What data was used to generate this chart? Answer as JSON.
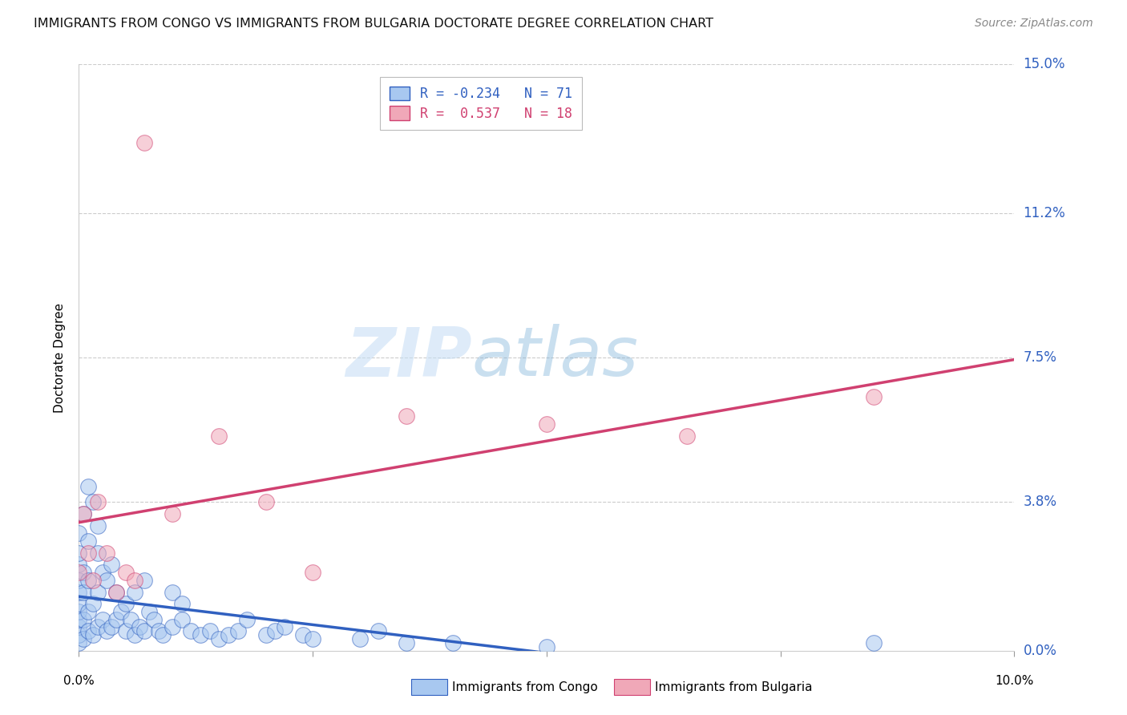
{
  "title": "IMMIGRANTS FROM CONGO VS IMMIGRANTS FROM BULGARIA DOCTORATE DEGREE CORRELATION CHART",
  "source": "Source: ZipAtlas.com",
  "ylabel": "Doctorate Degree",
  "xlim": [
    0.0,
    10.0
  ],
  "ylim": [
    0.0,
    15.0
  ],
  "legend_congo": "R = -0.234   N = 71",
  "legend_bulgaria": "R =  0.537   N = 18",
  "color_congo": "#A8C8F0",
  "color_bulgaria": "#F0A8B8",
  "line_color_congo": "#3060C0",
  "line_color_bulgaria": "#D04070",
  "ytick_labels": [
    "0.0%",
    "3.8%",
    "7.5%",
    "11.2%",
    "15.0%"
  ],
  "ytick_values": [
    0.0,
    3.8,
    7.5,
    11.2,
    15.0
  ],
  "watermark_zip": "ZIP",
  "watermark_atlas": "atlas",
  "congo_x": [
    0.0,
    0.0,
    0.0,
    0.0,
    0.0,
    0.0,
    0.0,
    0.0,
    0.0,
    0.0,
    0.0,
    0.05,
    0.05,
    0.05,
    0.05,
    0.05,
    0.1,
    0.1,
    0.1,
    0.1,
    0.1,
    0.15,
    0.15,
    0.15,
    0.2,
    0.2,
    0.2,
    0.2,
    0.25,
    0.25,
    0.3,
    0.3,
    0.35,
    0.35,
    0.4,
    0.4,
    0.45,
    0.5,
    0.5,
    0.55,
    0.6,
    0.6,
    0.65,
    0.7,
    0.7,
    0.75,
    0.8,
    0.85,
    0.9,
    1.0,
    1.0,
    1.1,
    1.1,
    1.2,
    1.3,
    1.4,
    1.5,
    1.6,
    1.7,
    1.8,
    2.0,
    2.1,
    2.2,
    2.4,
    2.5,
    3.0,
    3.2,
    3.5,
    4.0,
    5.0,
    8.5
  ],
  "congo_y": [
    0.2,
    0.4,
    0.6,
    0.8,
    1.0,
    1.2,
    1.5,
    1.8,
    2.2,
    2.5,
    3.0,
    0.3,
    0.8,
    1.5,
    2.0,
    3.5,
    0.5,
    1.0,
    1.8,
    2.8,
    4.2,
    0.4,
    1.2,
    3.8,
    0.6,
    1.5,
    2.5,
    3.2,
    0.8,
    2.0,
    0.5,
    1.8,
    0.6,
    2.2,
    0.8,
    1.5,
    1.0,
    0.5,
    1.2,
    0.8,
    0.4,
    1.5,
    0.6,
    0.5,
    1.8,
    1.0,
    0.8,
    0.5,
    0.4,
    0.6,
    1.5,
    0.8,
    1.2,
    0.5,
    0.4,
    0.5,
    0.3,
    0.4,
    0.5,
    0.8,
    0.4,
    0.5,
    0.6,
    0.4,
    0.3,
    0.3,
    0.5,
    0.2,
    0.2,
    0.1,
    0.2
  ],
  "bulgaria_x": [
    0.0,
    0.05,
    0.1,
    0.15,
    0.2,
    0.3,
    0.4,
    0.5,
    0.6,
    1.0,
    1.5,
    2.0,
    2.5,
    3.5,
    5.0,
    6.5,
    8.5,
    0.7
  ],
  "bulgaria_y": [
    2.0,
    3.5,
    2.5,
    1.8,
    3.8,
    2.5,
    1.5,
    2.0,
    1.8,
    3.5,
    5.5,
    3.8,
    2.0,
    6.0,
    5.8,
    5.5,
    6.5,
    13.0
  ]
}
